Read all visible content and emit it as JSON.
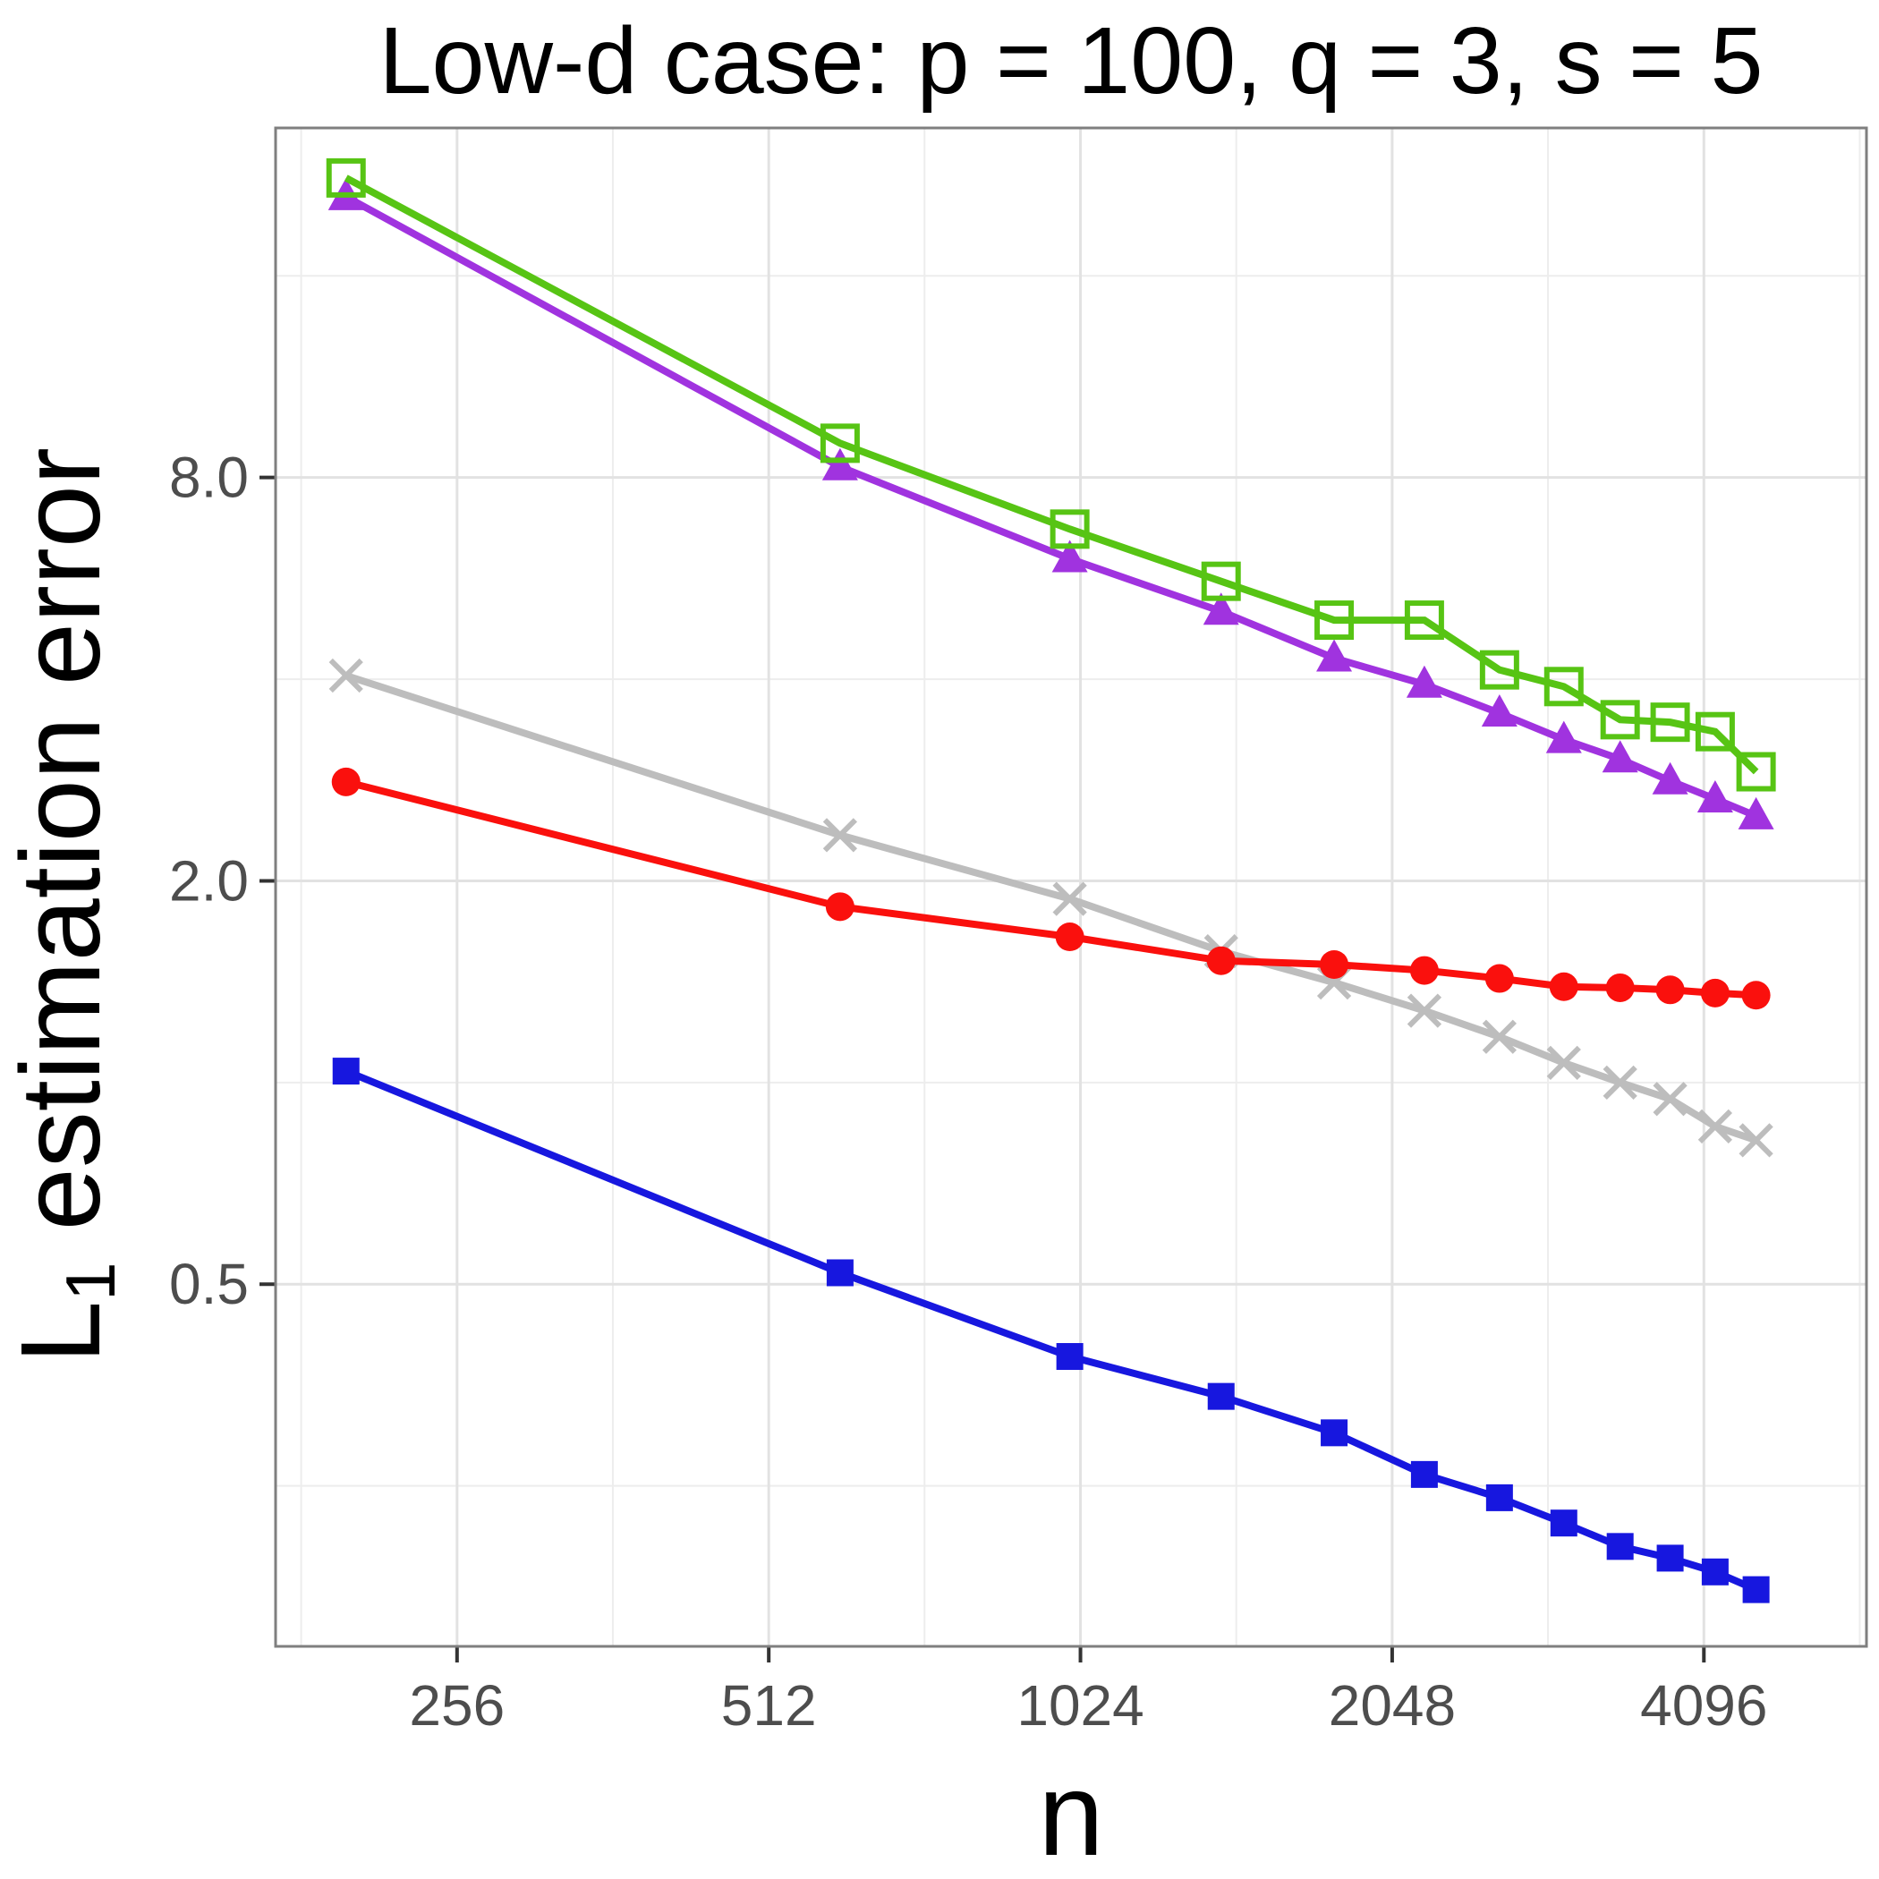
{
  "title": "Low-d case: p = 100, q = 3, s = 5",
  "axes": {
    "x": {
      "label": "n"
    },
    "y": {
      "label_main": "L",
      "label_sub": "1",
      "label_rest": " estimation error"
    }
  },
  "chart_data": {
    "type": "line",
    "title": "Low-d case: p = 100, q = 3, s = 5",
    "xlabel": "n",
    "ylabel": "L1 estimation error",
    "log_x": true,
    "log_y": true,
    "grid": true,
    "legend": "none",
    "x_range": [
      171,
      5880
    ],
    "y_range": [
      0.144,
      26.6
    ],
    "x_ticks": {
      "values": [
        256,
        512,
        1024,
        2048,
        4096
      ],
      "labels": [
        "256",
        "512",
        "1024",
        "2048",
        "4096"
      ],
      "minor": [
        181,
        362,
        724,
        1448,
        2896,
        5793
      ]
    },
    "y_ticks": {
      "values": [
        0.5,
        2.0,
        8.0
      ],
      "labels": [
        "0.5",
        "2.0",
        "8.0"
      ],
      "minor": [
        0.25,
        1.0,
        4.0,
        16.0
      ]
    },
    "x": [
      200,
      600,
      1000,
      1400,
      1800,
      2200,
      2600,
      3000,
      3400,
      3800,
      4200,
      4600
    ],
    "series": [
      {
        "name": "open-square-green",
        "marker": "open-square",
        "color": "#57C414",
        "values": [
          22.4,
          9.0,
          6.7,
          5.6,
          4.9,
          4.9,
          4.13,
          3.9,
          3.48,
          3.45,
          3.34,
          2.91
        ]
      },
      {
        "name": "filled-triangle-purple",
        "marker": "filled-triangle",
        "color": "#A033DF",
        "values": [
          21.0,
          8.3,
          6.05,
          5.05,
          4.3,
          3.93,
          3.56,
          3.25,
          3.04,
          2.82,
          2.65,
          2.5
        ]
      },
      {
        "name": "cross-gray",
        "marker": "x-cross",
        "color": "#BDBDBD",
        "values": [
          4.05,
          2.34,
          1.88,
          1.57,
          1.41,
          1.28,
          1.17,
          1.07,
          1.0,
          0.945,
          0.86,
          0.82
        ]
      },
      {
        "name": "filled-circle-red",
        "marker": "filled-circle",
        "color": "#FA100D",
        "values": [
          2.81,
          1.83,
          1.65,
          1.52,
          1.5,
          1.47,
          1.43,
          1.39,
          1.385,
          1.375,
          1.36,
          1.35
        ]
      },
      {
        "name": "filled-square-blue",
        "marker": "filled-square",
        "color": "#1717DF",
        "values": [
          1.04,
          0.52,
          0.39,
          0.34,
          0.3,
          0.26,
          0.24,
          0.22,
          0.203,
          0.195,
          0.186,
          0.175
        ]
      }
    ]
  },
  "colors": {
    "background": "#FFFFFF",
    "panel_background": "#FFFFFF",
    "grid_major": "#E2E2E2",
    "grid_minor": "#EDEDED",
    "panel_border": "#7F7F7F",
    "tick_mark": "#333333",
    "tick_label": "#4D4D4D",
    "title_text": "#000000"
  }
}
